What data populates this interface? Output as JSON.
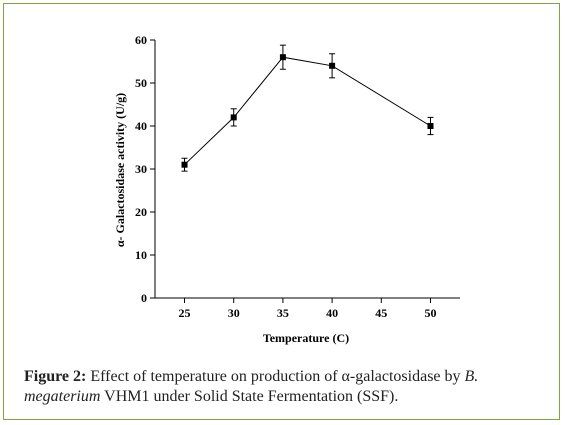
{
  "chart_data": {
    "type": "line",
    "x": [
      25,
      30,
      35,
      40,
      50
    ],
    "series": [
      {
        "values": [
          31,
          42,
          56,
          54,
          40
        ],
        "errors": [
          1.5,
          2,
          2.8,
          2.8,
          2
        ]
      }
    ],
    "xlabel": "Temperature (C)",
    "ylabel": "α- Galactosidase activity (U/g)",
    "xlim": [
      22,
      53
    ],
    "ylim": [
      0,
      60
    ],
    "xticks": [
      25,
      30,
      35,
      40,
      45,
      50
    ],
    "yticks": [
      0,
      10,
      20,
      30,
      40,
      50,
      60
    ],
    "marker": "square",
    "grid": false
  },
  "caption": {
    "figure_label": "Figure 2:",
    "text_part1": " Effect of temperature on production of α-galactosidase by ",
    "species": "B. megaterium",
    "text_part2": " VHM1 under Solid State Fermentation (SSF)."
  },
  "colors": {
    "frame": "#7aa83a",
    "series": "#000000"
  }
}
